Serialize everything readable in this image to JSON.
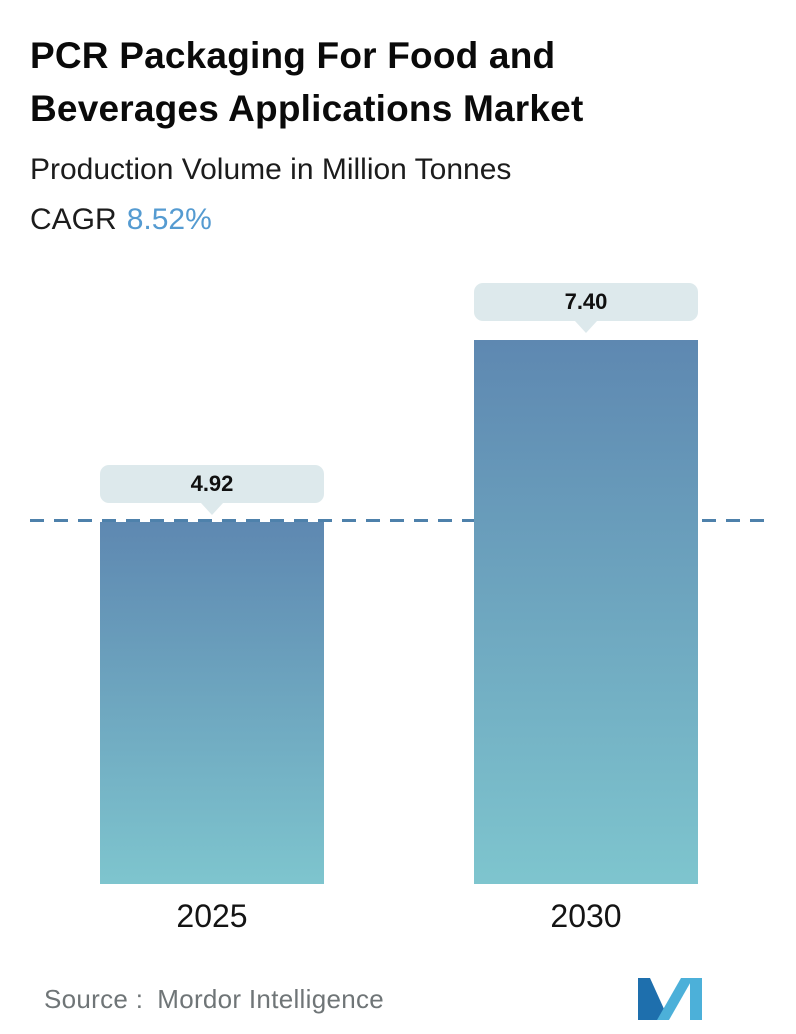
{
  "header": {
    "title": "PCR Packaging For Food and Beverages Applications Market",
    "subtitle": "Production Volume in Million Tonnes",
    "cagr_label": "CAGR",
    "cagr_value": "8.52%"
  },
  "chart_data": {
    "type": "bar",
    "title": "PCR Packaging For Food and Beverages Applications Market",
    "subtitle": "Production Volume in Million Tonnes",
    "cagr": "8.52%",
    "categories": [
      "2025",
      "2030"
    ],
    "values": [
      4.92,
      7.4
    ],
    "value_labels": [
      "4.92",
      "7.40"
    ],
    "xlabel": "",
    "ylabel": "Production Volume in Million Tonnes",
    "ylim": [
      0,
      7.4
    ],
    "reference_line_value": 4.92,
    "grid": false,
    "legend": false
  },
  "footer": {
    "source_label": "Source :",
    "source_name": "Mordor Intelligence",
    "logo": "mordor-intelligence-logo"
  },
  "colors": {
    "bar_gradient_top": "#5e88b1",
    "bar_gradient_bottom": "#7ec5ce",
    "bubble_bg": "#dde9ec",
    "dashed_line": "#4e81ab",
    "cagr_accent": "#559bd1",
    "source_text": "#6f7577",
    "logo_dark": "#1e6fad",
    "logo_light": "#4cb0d9"
  }
}
